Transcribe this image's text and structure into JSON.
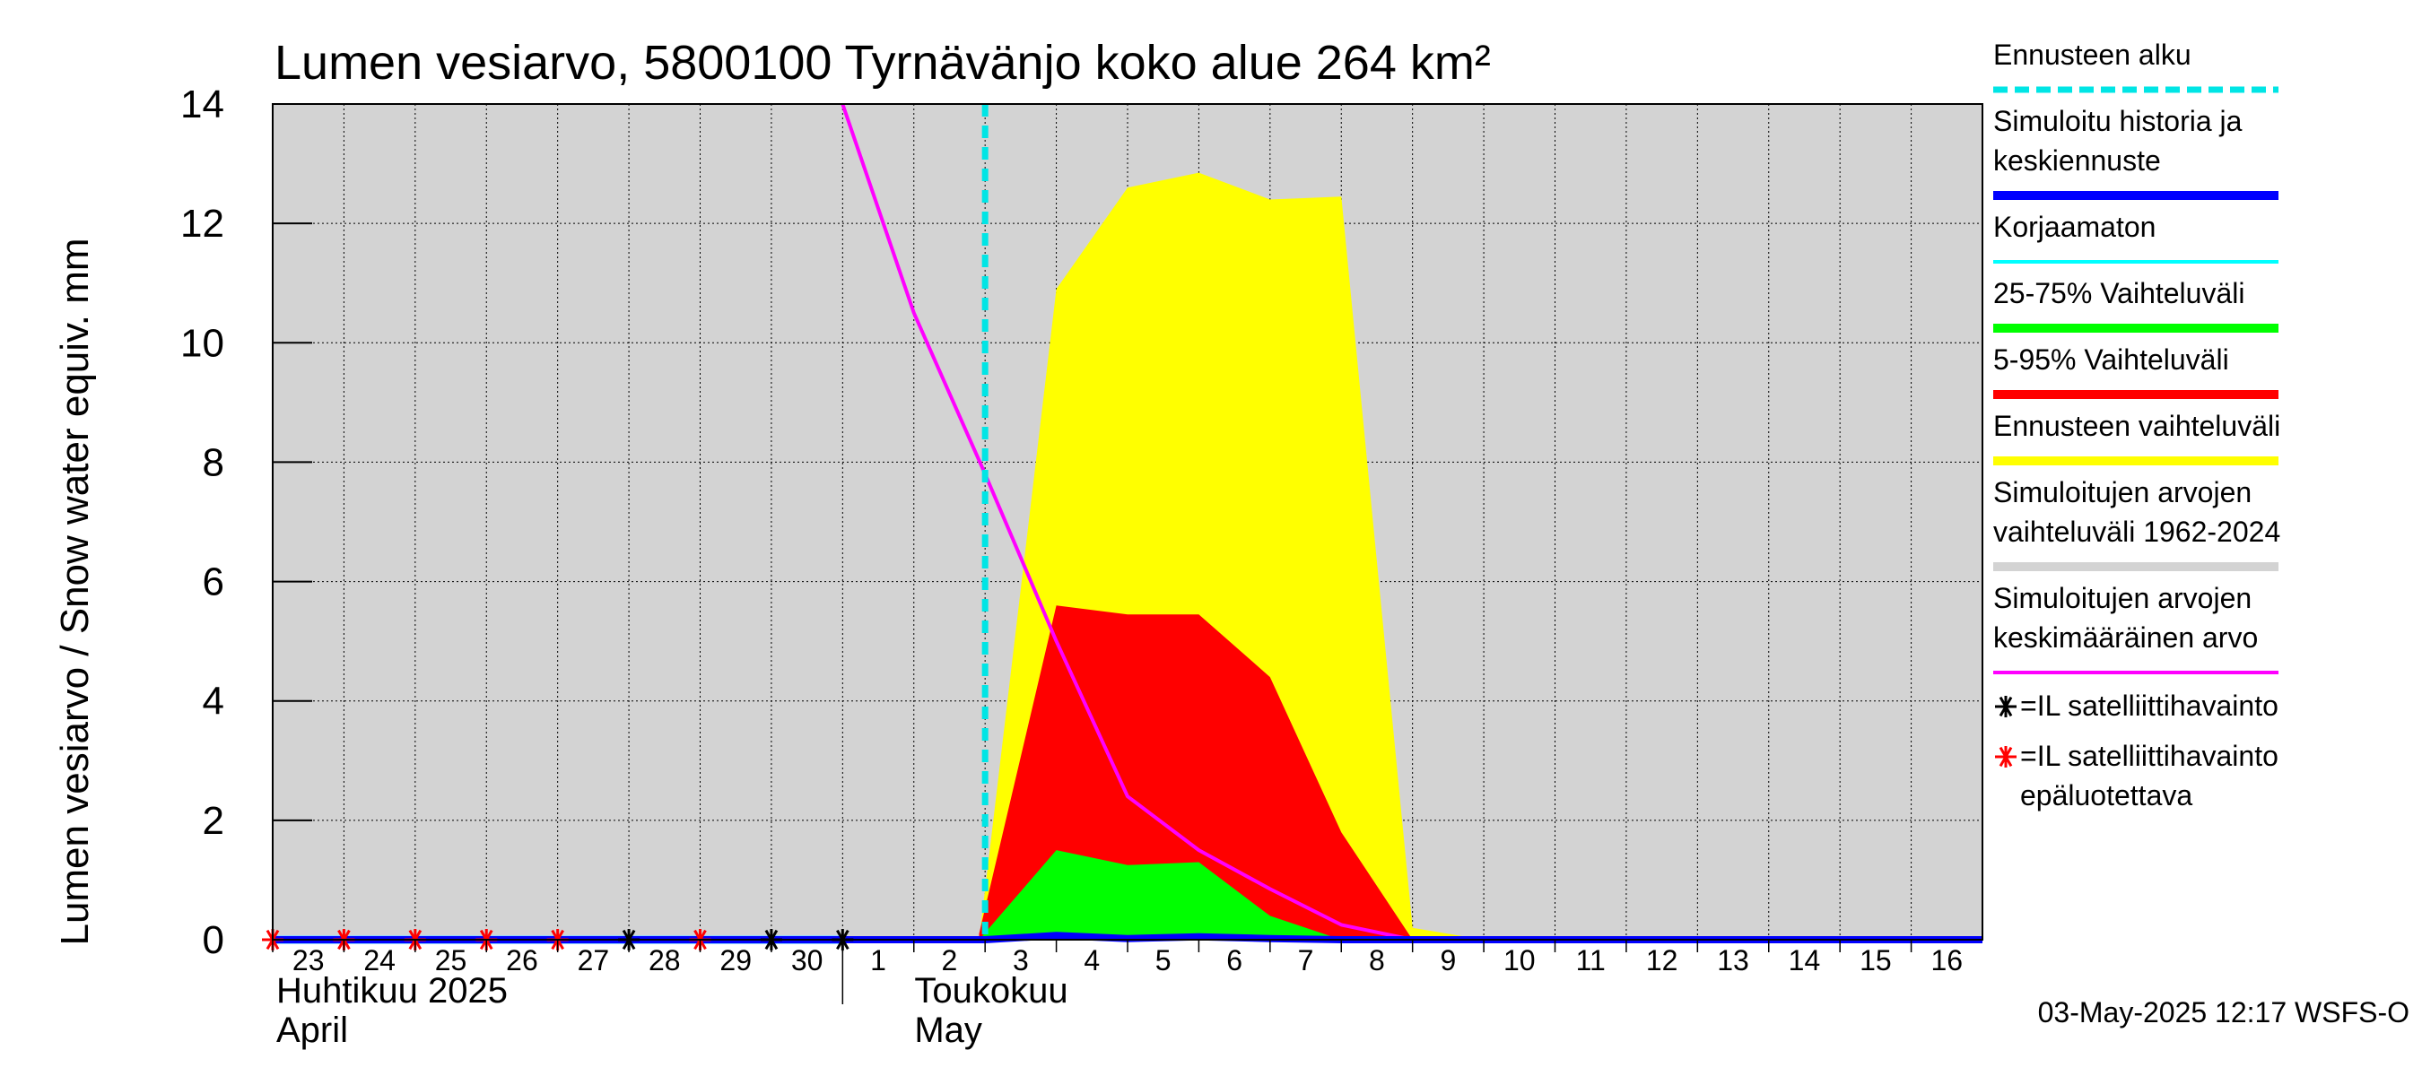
{
  "chart_data": {
    "type": "area",
    "title": "Lumen vesiarvo, 5800100 Tyrnävänjo koko alue 264 km²",
    "ylabel": "Lumen vesiarvo / Snow water equiv.    mm",
    "ylim": [
      0,
      14
    ],
    "yticks": [
      "0",
      "2",
      "4",
      "6",
      "8",
      "10",
      "12",
      "14"
    ],
    "xlim": [
      "2025-04-23",
      "2025-05-17"
    ],
    "day_ticks": [
      {
        "date": "2025-04-23",
        "label": "23"
      },
      {
        "date": "2025-04-24",
        "label": "24"
      },
      {
        "date": "2025-04-25",
        "label": "25"
      },
      {
        "date": "2025-04-26",
        "label": "26"
      },
      {
        "date": "2025-04-27",
        "label": "27"
      },
      {
        "date": "2025-04-28",
        "label": "28"
      },
      {
        "date": "2025-04-29",
        "label": "29"
      },
      {
        "date": "2025-04-30",
        "label": "30"
      },
      {
        "date": "2025-05-01",
        "label": "1"
      },
      {
        "date": "2025-05-02",
        "label": "2"
      },
      {
        "date": "2025-05-03",
        "label": "3"
      },
      {
        "date": "2025-05-04",
        "label": "4"
      },
      {
        "date": "2025-05-05",
        "label": "5"
      },
      {
        "date": "2025-05-06",
        "label": "6"
      },
      {
        "date": "2025-05-07",
        "label": "7"
      },
      {
        "date": "2025-05-08",
        "label": "8"
      },
      {
        "date": "2025-05-09",
        "label": "9"
      },
      {
        "date": "2025-05-10",
        "label": "10"
      },
      {
        "date": "2025-05-11",
        "label": "11"
      },
      {
        "date": "2025-05-12",
        "label": "12"
      },
      {
        "date": "2025-05-13",
        "label": "13"
      },
      {
        "date": "2025-05-14",
        "label": "14"
      },
      {
        "date": "2025-05-15",
        "label": "15"
      },
      {
        "date": "2025-05-16",
        "label": "16"
      }
    ],
    "month_labels": [
      {
        "line1": "Huhtikuu  2025",
        "line2": "April"
      },
      {
        "line1": "Toukokuu",
        "line2": "May"
      }
    ],
    "forecast_start": "2025-05-03",
    "grid": true,
    "legend_position": "right",
    "series": [
      {
        "name": "Ennusteen vaihteluväli",
        "color": "#ffff00",
        "kind": "band",
        "x": [
          "2025-05-02T22:00",
          "2025-05-04",
          "2025-05-05",
          "2025-05-06",
          "2025-05-07",
          "2025-05-08",
          "2025-05-09",
          "2025-05-10"
        ],
        "upper": [
          0,
          10.9,
          12.6,
          12.85,
          12.4,
          12.45,
          0.2,
          0
        ],
        "lower": [
          0,
          0,
          0,
          0,
          0,
          0,
          0,
          0
        ]
      },
      {
        "name": "5-95% Vaihteluväli",
        "color": "#ff0000",
        "kind": "band",
        "x": [
          "2025-05-02T22:00",
          "2025-05-04",
          "2025-05-05",
          "2025-05-06",
          "2025-05-07",
          "2025-05-08",
          "2025-05-09"
        ],
        "upper": [
          0.1,
          5.6,
          5.45,
          5.45,
          4.4,
          1.8,
          0
        ],
        "lower": [
          0,
          0,
          0,
          0,
          0,
          0,
          0
        ]
      },
      {
        "name": "25-75% Vaihteluväli",
        "color": "#00ff00",
        "kind": "band",
        "x": [
          "2025-05-02T22:00",
          "2025-05-04",
          "2025-05-05",
          "2025-05-06",
          "2025-05-07",
          "2025-05-08"
        ],
        "upper": [
          0,
          1.5,
          1.25,
          1.3,
          0.4,
          0
        ],
        "lower": [
          0,
          0,
          0,
          0,
          0,
          0
        ]
      },
      {
        "name": "Simuloitujen arvojen keskimääräinen arvo",
        "color": "#ff00ff",
        "kind": "line",
        "x": [
          "2025-05-01",
          "2025-05-02",
          "2025-05-03",
          "2025-05-04",
          "2025-05-05",
          "2025-05-06",
          "2025-05-07",
          "2025-05-08",
          "2025-05-09",
          "2025-05-17"
        ],
        "y": [
          14.0,
          10.5,
          7.8,
          5.0,
          2.4,
          1.5,
          0.85,
          0.25,
          0,
          0
        ]
      },
      {
        "name": "Korjaamaton",
        "color": "#00ffff",
        "kind": "line",
        "x": [
          "2025-04-23",
          "2025-05-01"
        ],
        "y": [
          0,
          0
        ]
      },
      {
        "name": "Simuloitu historia ja keskiennuste",
        "color": "#0000ff",
        "kind": "line",
        "x": [
          "2025-04-23",
          "2025-05-03",
          "2025-05-04",
          "2025-05-05",
          "2025-05-06",
          "2025-05-07",
          "2025-05-08",
          "2025-05-09",
          "2025-05-17"
        ],
        "y": [
          0,
          0,
          0.07,
          0.02,
          0.05,
          0.02,
          0,
          0,
          0
        ]
      }
    ],
    "satellite_obs": [
      {
        "date": "2025-04-23",
        "value": 0,
        "reliable": false
      },
      {
        "date": "2025-04-24",
        "value": 0,
        "reliable": false
      },
      {
        "date": "2025-04-25",
        "value": 0,
        "reliable": false
      },
      {
        "date": "2025-04-26",
        "value": 0,
        "reliable": false
      },
      {
        "date": "2025-04-27",
        "value": 0,
        "reliable": false
      },
      {
        "date": "2025-04-28",
        "value": 0,
        "reliable": true
      },
      {
        "date": "2025-04-29",
        "value": 0,
        "reliable": false
      },
      {
        "date": "2025-04-30",
        "value": 0,
        "reliable": true
      },
      {
        "date": "2025-05-01",
        "value": 0,
        "reliable": true
      }
    ],
    "legend": [
      {
        "label": "Ennusteen alku",
        "color": "#00e5e5",
        "style": "dashed"
      },
      {
        "label": "Simuloitu historia ja\nkeskiennuste",
        "color": "#0000ff",
        "style": "thick"
      },
      {
        "label": "Korjaamaton",
        "color": "#00ffff",
        "style": "line"
      },
      {
        "label": "25-75% Vaihteluväli",
        "color": "#00ff00",
        "style": "thick"
      },
      {
        "label": "5-95% Vaihteluväli",
        "color": "#ff0000",
        "style": "thick"
      },
      {
        "label": "Ennusteen vaihteluväli",
        "color": "#ffff00",
        "style": "thick"
      },
      {
        "label": "Simuloitujen arvojen\nvaihteluväli 1962-2024",
        "color": "#d3d3d3",
        "style": "thick"
      },
      {
        "label": "Simuloitujen arvojen\nkeskimääräinen arvo",
        "color": "#ff00ff",
        "style": "line"
      },
      {
        "label": "=IL satelliittihavainto",
        "color": "#000000",
        "style": "star"
      },
      {
        "label": "=IL satelliittihavainto\nepäluotettava",
        "color": "#ff0000",
        "style": "star"
      }
    ],
    "footer": "03-May-2025 12:17 WSFS-O"
  }
}
